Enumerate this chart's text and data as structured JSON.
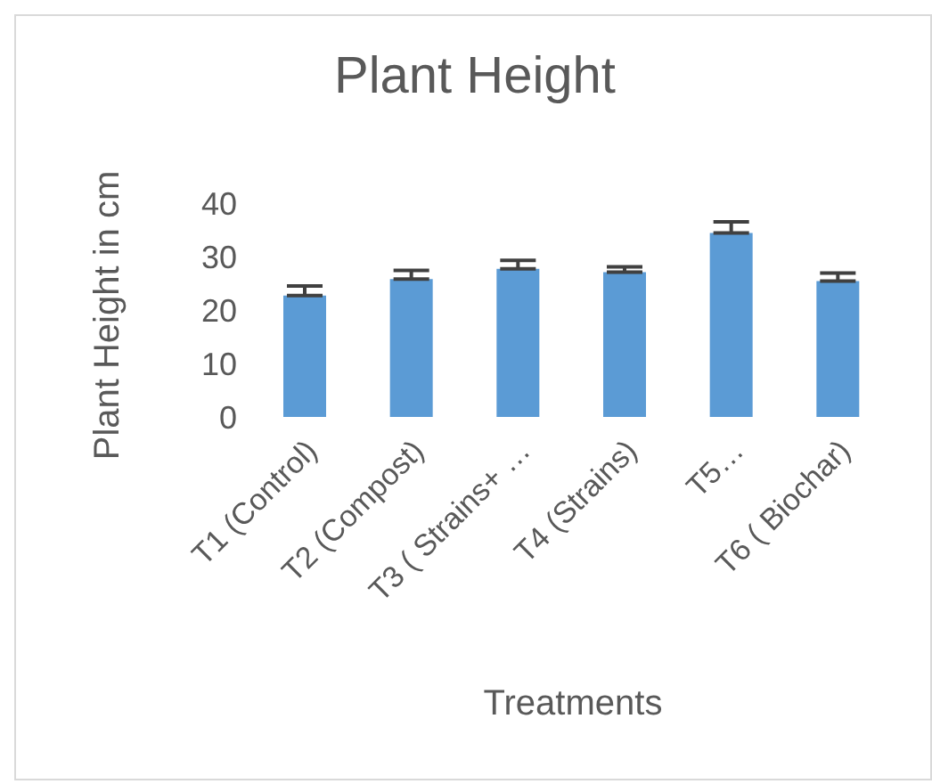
{
  "chart_data": {
    "type": "bar",
    "title": "Plant Height",
    "xlabel": "Treatments",
    "ylabel": "Plant Height in cm",
    "categories": [
      "T1 (Control)",
      "T2 (Compost)",
      "T3 ( Strains+ …",
      "T4 (Strains)",
      "T5…",
      "T6 ( Biochar)"
    ],
    "values": [
      22.7,
      25.8,
      27.7,
      27.1,
      34.4,
      25.4
    ],
    "errors": [
      [
        22.7,
        24.5
      ],
      [
        25.8,
        27.4
      ],
      [
        27.7,
        29.3
      ],
      [
        27.1,
        28.1
      ],
      [
        34.4,
        36.5
      ],
      [
        25.4,
        26.9
      ]
    ],
    "color": "#5b9bd5",
    "ylim": [
      0,
      40
    ],
    "yticks": [
      0,
      10,
      20,
      30,
      40
    ],
    "grid": false,
    "legend": false
  }
}
